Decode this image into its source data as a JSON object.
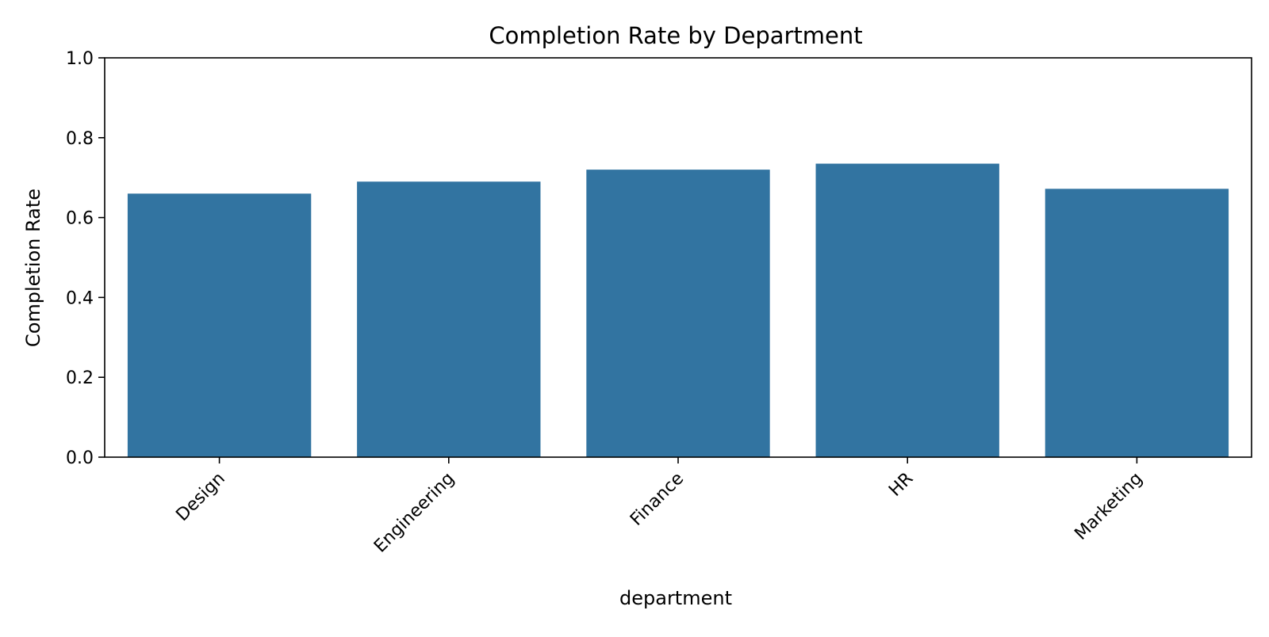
{
  "chart_data": {
    "type": "bar",
    "title": "Completion Rate by Department",
    "xlabel": "department",
    "ylabel": "Completion Rate",
    "categories": [
      "Design",
      "Engineering",
      "Finance",
      "HR",
      "Marketing"
    ],
    "values": [
      0.66,
      0.69,
      0.72,
      0.735,
      0.672
    ],
    "ylim": [
      0,
      1.0
    ],
    "yticks": [
      "0.0",
      "0.2",
      "0.4",
      "0.6",
      "0.8",
      "1.0"
    ],
    "grid": false,
    "legend": "none",
    "bar_color": "#3274a1",
    "x_tick_rotation": "45°"
  }
}
